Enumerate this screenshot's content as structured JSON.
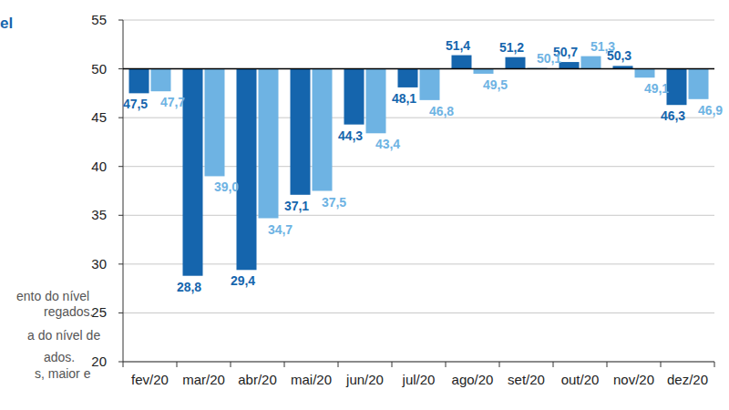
{
  "chart_data": {
    "type": "bar",
    "title": "el",
    "annotations": [
      "ento do nível",
      "regados.",
      "a do nível de",
      "ados.",
      "s, maior e"
    ],
    "categories": [
      "fev/20",
      "mar/20",
      "abr/20",
      "mai/20",
      "jun/20",
      "jul/20",
      "ago/20",
      "set/20",
      "out/20",
      "nov/20",
      "dez/20"
    ],
    "series": [
      {
        "color": "#1565ad",
        "values": [
          47.5,
          28.8,
          29.4,
          37.1,
          44.3,
          48.1,
          51.4,
          51.2,
          50.7,
          50.3,
          46.3
        ],
        "value_labels": [
          "47,5",
          "28,8",
          "29,4",
          "37,1",
          "44,3",
          "48,1",
          "51,4",
          "51,2",
          "50,7",
          "50,3",
          "46,3"
        ]
      },
      {
        "color": "#6eb3e3",
        "values": [
          47.7,
          39.0,
          34.7,
          37.5,
          43.4,
          46.8,
          49.5,
          50.1,
          51.3,
          49.1,
          46.9
        ],
        "value_labels": [
          "47,7",
          "39,0",
          "34,7",
          "37,5",
          "43,4",
          "46,8",
          "49,5",
          "50,1",
          "51,3",
          "49,1",
          "46,9"
        ]
      }
    ],
    "baseline": 50,
    "ylim": [
      20,
      55
    ],
    "yticks": [
      20,
      25,
      30,
      35,
      40,
      45,
      50,
      55
    ],
    "grid": true,
    "data_labels": true
  }
}
